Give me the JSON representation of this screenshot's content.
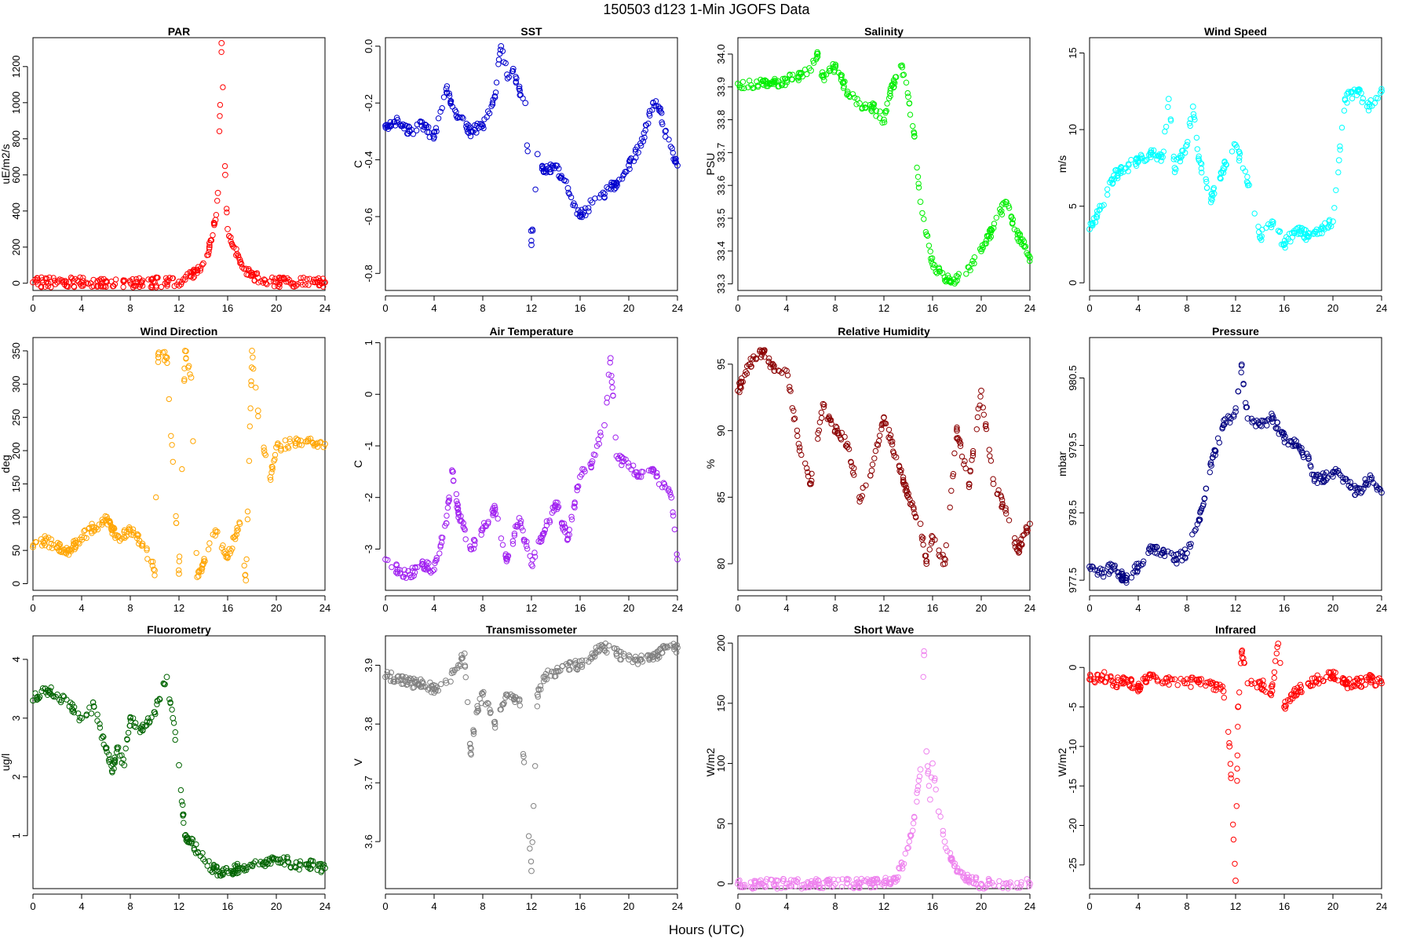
{
  "figure": {
    "title": "150503   d123   1-Min  JGOFS Data",
    "xlabel": "Hours (UTC)"
  },
  "chart_data": [
    {
      "type": "scatter",
      "title": "PAR",
      "xlabel": "Hours (UTC)",
      "ylabel": "uE/m2/s",
      "color": "#ff0000",
      "xlim": [
        0,
        24
      ],
      "ylim": [
        -40,
        1360
      ],
      "xticks": [
        0,
        4,
        8,
        12,
        16,
        20,
        24
      ],
      "yticks": [
        0,
        200,
        400,
        600,
        800,
        1000,
        1200
      ],
      "ytick_labels": [
        "0",
        "200",
        "400",
        "600",
        "800",
        "1000",
        "1200"
      ],
      "x": [
        0,
        2,
        4,
        6,
        8,
        10,
        11,
        12,
        12.5,
        13,
        13.5,
        14,
        14.5,
        15,
        15.2,
        15.5,
        15.8,
        16,
        16.5,
        17,
        17.5,
        18,
        18.5,
        19,
        19.5,
        20,
        22,
        24
      ],
      "y": [
        5,
        5,
        5,
        5,
        5,
        5,
        5,
        8,
        20,
        40,
        75,
        110,
        200,
        350,
        500,
        1330,
        600,
        300,
        200,
        130,
        80,
        45,
        30,
        20,
        10,
        5,
        5,
        5
      ]
    },
    {
      "type": "scatter",
      "title": "SST",
      "xlabel": "Hours (UTC)",
      "ylabel": "C",
      "color": "#0000cd",
      "xlim": [
        0,
        24
      ],
      "ylim": [
        -0.86,
        0.03
      ],
      "xticks": [
        0,
        4,
        8,
        12,
        16,
        20,
        24
      ],
      "yticks": [
        -0.8,
        -0.6,
        -0.4,
        -0.2,
        0.0
      ],
      "ytick_labels": [
        "-0.8",
        "-0.6",
        "-0.4",
        "-0.2",
        "0.0"
      ],
      "x": [
        0,
        1,
        2,
        3,
        4,
        5,
        6,
        7,
        8,
        9,
        9.5,
        10,
        10.5,
        11,
        11.5,
        12,
        12.5,
        13,
        14,
        15,
        16,
        17,
        18,
        19,
        20,
        21,
        22,
        22.5,
        23,
        24
      ],
      "y": [
        -0.28,
        -0.26,
        -0.3,
        -0.28,
        -0.32,
        -0.15,
        -0.25,
        -0.3,
        -0.28,
        -0.18,
        0.0,
        -0.1,
        -0.08,
        -0.15,
        -0.2,
        -0.7,
        -0.38,
        -0.44,
        -0.42,
        -0.5,
        -0.6,
        -0.55,
        -0.52,
        -0.48,
        -0.42,
        -0.35,
        -0.2,
        -0.22,
        -0.3,
        -0.42
      ]
    },
    {
      "type": "scatter",
      "title": "Salinity",
      "xlabel": "Hours (UTC)",
      "ylabel": "PSU",
      "color": "#00ee00",
      "xlim": [
        0,
        24
      ],
      "ylim": [
        33.28,
        34.05
      ],
      "xticks": [
        0,
        4,
        8,
        12,
        16,
        20,
        24
      ],
      "yticks": [
        33.3,
        33.4,
        33.5,
        33.6,
        33.7,
        33.8,
        33.9,
        34.0
      ],
      "ytick_labels": [
        "33.3",
        "33.4",
        "33.5",
        "33.6",
        "33.7",
        "33.8",
        "33.9",
        "34.0"
      ],
      "x": [
        0,
        2,
        4,
        5,
        6,
        6.5,
        7,
        8,
        8.5,
        9,
        10,
        11,
        12,
        12.5,
        13,
        13.5,
        14,
        14.5,
        15,
        15.5,
        16,
        17,
        18,
        19,
        20,
        21,
        22,
        23,
        24
      ],
      "y": [
        33.91,
        33.91,
        33.92,
        33.93,
        33.95,
        34.0,
        33.93,
        33.96,
        33.93,
        33.88,
        33.85,
        33.84,
        33.8,
        33.88,
        33.93,
        33.96,
        33.87,
        33.75,
        33.55,
        33.45,
        33.36,
        33.32,
        33.31,
        33.35,
        33.4,
        33.47,
        33.55,
        33.45,
        33.38
      ]
    },
    {
      "type": "scatter",
      "title": "Wind Speed",
      "xlabel": "Hours (UTC)",
      "ylabel": "m/s",
      "color": "#00ffff",
      "xlim": [
        0,
        24
      ],
      "ylim": [
        -0.5,
        16
      ],
      "xticks": [
        0,
        4,
        8,
        12,
        16,
        20,
        24
      ],
      "yticks": [
        0,
        5,
        10,
        15
      ],
      "ytick_labels": [
        "0",
        "5",
        "10",
        "15"
      ],
      "x": [
        0,
        1,
        2,
        3,
        4,
        5,
        6,
        6.5,
        7,
        8,
        8.5,
        9,
        10,
        11,
        12,
        13,
        14,
        15,
        16,
        17,
        18,
        19,
        20,
        20.5,
        21,
        22,
        23,
        24
      ],
      "y": [
        3.5,
        5,
        7,
        7.5,
        8,
        8.5,
        8.2,
        12,
        7.5,
        9,
        11.5,
        8,
        5.5,
        7.5,
        9,
        6.5,
        3,
        4,
        2.5,
        3.5,
        3,
        3.5,
        4,
        8,
        12,
        12.5,
        11.5,
        12.5
      ]
    },
    {
      "type": "scatter",
      "title": "Wind Direction",
      "xlabel": "Hours (UTC)",
      "ylabel": "deg",
      "color": "#ffa500",
      "xlim": [
        0,
        24
      ],
      "ylim": [
        -10,
        370
      ],
      "xticks": [
        0,
        4,
        8,
        12,
        16,
        20,
        24
      ],
      "yticks": [
        0,
        50,
        100,
        150,
        200,
        250,
        300,
        350
      ],
      "ytick_labels": [
        "0",
        "50",
        "100",
        "150",
        "200",
        "250",
        "300",
        "350"
      ],
      "x": [
        0,
        1,
        2,
        3,
        4,
        5,
        6,
        7,
        8,
        9,
        10,
        10.3,
        11,
        12,
        12.5,
        13,
        13.5,
        14,
        15,
        16,
        17,
        17.5,
        18,
        18.5,
        19,
        19.5,
        20,
        22,
        24
      ],
      "y": [
        55,
        65,
        55,
        50,
        70,
        85,
        95,
        70,
        80,
        60,
        20,
        345,
        340,
        15,
        350,
        310,
        10,
        30,
        80,
        40,
        90,
        5,
        350,
        260,
        200,
        160,
        205,
        215,
        210
      ]
    },
    {
      "type": "scatter",
      "title": "Air Temperature",
      "xlabel": "Hours (UTC)",
      "ylabel": "C",
      "color": "#a020f0",
      "xlim": [
        0,
        24
      ],
      "ylim": [
        -3.8,
        1.1
      ],
      "xticks": [
        0,
        4,
        8,
        12,
        16,
        20,
        24
      ],
      "yticks": [
        -3,
        -2,
        -1,
        0,
        1
      ],
      "ytick_labels": [
        "-3",
        "-2",
        "-1",
        "0",
        "1"
      ],
      "x": [
        0,
        1,
        2,
        3,
        4,
        5,
        5.5,
        6,
        7,
        8,
        9,
        10,
        11,
        12,
        13,
        14,
        15,
        16,
        17,
        18,
        18.5,
        19,
        20,
        21,
        22,
        23,
        23.5,
        24
      ],
      "y": [
        -3.2,
        -3.4,
        -3.5,
        -3.3,
        -3.4,
        -2.5,
        -1.5,
        -2.3,
        -3,
        -2.6,
        -2.2,
        -3.2,
        -2.4,
        -3.3,
        -2.7,
        -2.1,
        -2.8,
        -1.6,
        -1.3,
        -0.6,
        0.7,
        -1.2,
        -1.4,
        -1.6,
        -1.5,
        -1.8,
        -2.0,
        -3.2
      ]
    },
    {
      "type": "scatter",
      "title": "Relative Humidity",
      "xlabel": "Hours (UTC)",
      "ylabel": "%",
      "color": "#8b0000",
      "xlim": [
        0,
        24
      ],
      "ylim": [
        78,
        97
      ],
      "xticks": [
        0,
        4,
        8,
        12,
        16,
        20,
        24
      ],
      "yticks": [
        80,
        85,
        90,
        95
      ],
      "ytick_labels": [
        "80",
        "85",
        "90",
        "95"
      ],
      "x": [
        0,
        1,
        2,
        3,
        4,
        5,
        6,
        7,
        8,
        9,
        10,
        11,
        12,
        13,
        14,
        15,
        15.5,
        16,
        17,
        18,
        19,
        20,
        21,
        22,
        23,
        24
      ],
      "y": [
        93,
        95,
        96,
        94.5,
        94.5,
        89,
        86,
        92,
        90,
        89,
        85,
        87,
        91,
        88,
        85,
        83,
        80,
        82,
        80,
        90,
        86,
        93,
        86,
        84,
        81,
        83
      ]
    },
    {
      "type": "scatter",
      "title": "Pressure",
      "xlabel": "Hours (UTC)",
      "ylabel": "mbar",
      "color": "#000080",
      "xlim": [
        0,
        24
      ],
      "ylim": [
        977.35,
        981.1
      ],
      "xticks": [
        0,
        4,
        8,
        12,
        16,
        20,
        24
      ],
      "yticks": [
        977.5,
        978.5,
        979.5,
        980.5
      ],
      "ytick_labels": [
        "977.5",
        "978.5",
        "979.5",
        "980.5"
      ],
      "x": [
        0,
        1,
        2,
        3,
        4,
        5,
        6,
        7,
        8,
        9,
        10,
        11,
        12,
        12.5,
        13,
        14,
        15,
        16,
        17,
        18,
        18.5,
        19,
        20,
        21,
        22,
        23,
        24
      ],
      "y": [
        977.7,
        977.6,
        977.7,
        977.5,
        977.7,
        978.0,
        977.9,
        977.8,
        977.9,
        978.4,
        979.2,
        979.8,
        980.0,
        980.7,
        979.9,
        979.8,
        979.9,
        979.6,
        979.5,
        979.3,
        979.0,
        979.0,
        979.1,
        979.0,
        978.8,
        979.0,
        978.8
      ]
    },
    {
      "type": "scatter",
      "title": "Fluorometry",
      "xlabel": "Hours (UTC)",
      "ylabel": "ug/l",
      "color": "#006400",
      "xlim": [
        0,
        24
      ],
      "ylim": [
        0.1,
        4.4
      ],
      "xticks": [
        0,
        4,
        8,
        12,
        16,
        20,
        24
      ],
      "yticks": [
        1,
        2,
        3,
        4
      ],
      "ytick_labels": [
        "1",
        "2",
        "3",
        "4"
      ],
      "x": [
        0,
        1,
        2,
        3,
        4,
        5,
        6,
        6.5,
        7,
        7.5,
        8,
        9,
        10,
        11,
        11.5,
        12,
        12.5,
        13,
        14,
        15,
        16,
        17,
        18,
        19,
        20,
        21,
        22,
        23,
        24
      ],
      "y": [
        3.3,
        3.5,
        3.4,
        3.2,
        3.0,
        3.2,
        2.5,
        2.1,
        2.5,
        2.2,
        3.0,
        2.8,
        3.1,
        3.7,
        3.0,
        2.2,
        1.0,
        0.9,
        0.6,
        0.4,
        0.4,
        0.45,
        0.5,
        0.55,
        0.6,
        0.55,
        0.5,
        0.5,
        0.45
      ]
    },
    {
      "type": "scatter",
      "title": "Transmissometer",
      "xlabel": "Hours (UTC)",
      "ylabel": "V",
      "color": "#808080",
      "xlim": [
        0,
        24
      ],
      "ylim": [
        3.52,
        3.95
      ],
      "xticks": [
        0,
        4,
        8,
        12,
        16,
        20,
        24
      ],
      "yticks": [
        3.6,
        3.7,
        3.8,
        3.9
      ],
      "ytick_labels": [
        "3.6",
        "3.7",
        "3.8",
        "3.9"
      ],
      "x": [
        0,
        1,
        2,
        3,
        4,
        5,
        6,
        6.5,
        7,
        7.5,
        8,
        9,
        10,
        11,
        12,
        12.5,
        13,
        14,
        15,
        16,
        17,
        18,
        19,
        20,
        21,
        22,
        23,
        24
      ],
      "y": [
        3.88,
        3.88,
        3.87,
        3.87,
        3.86,
        3.87,
        3.9,
        3.92,
        3.75,
        3.82,
        3.85,
        3.8,
        3.85,
        3.84,
        3.55,
        3.85,
        3.88,
        3.89,
        3.9,
        3.9,
        3.92,
        3.93,
        3.92,
        3.91,
        3.91,
        3.91,
        3.93,
        3.93
      ]
    },
    {
      "type": "scatter",
      "title": "Short Wave",
      "xlabel": "Hours (UTC)",
      "ylabel": "W/m2",
      "color": "#ee82ee",
      "xlim": [
        0,
        24
      ],
      "ylim": [
        -4,
        206
      ],
      "xticks": [
        0,
        4,
        8,
        12,
        16,
        20,
        24
      ],
      "yticks": [
        0,
        50,
        100,
        150,
        200
      ],
      "ytick_labels": [
        "0",
        "50",
        "100",
        "150",
        "200"
      ],
      "x": [
        0,
        2,
        4,
        6,
        8,
        10,
        11,
        12,
        13,
        13.5,
        14,
        14.5,
        15,
        15.3,
        15.5,
        15.8,
        16,
        16.5,
        17,
        17.5,
        18,
        19,
        20,
        22,
        24
      ],
      "y": [
        0,
        0,
        0,
        0,
        0,
        0,
        0,
        1,
        5,
        15,
        30,
        55,
        95,
        190,
        110,
        70,
        100,
        60,
        35,
        20,
        10,
        3,
        0,
        0,
        0
      ]
    },
    {
      "type": "scatter",
      "title": "Infrared",
      "xlabel": "Hours (UTC)",
      "ylabel": "W/m2",
      "color": "#ff0000",
      "xlim": [
        0,
        24
      ],
      "ylim": [
        -28,
        4
      ],
      "xticks": [
        0,
        4,
        8,
        12,
        16,
        20,
        24
      ],
      "yticks": [
        -25,
        -20,
        -15,
        -10,
        -5,
        0
      ],
      "ytick_labels": [
        "-25",
        "-20",
        "-15",
        "-10",
        "-5",
        "0"
      ],
      "x": [
        0,
        1,
        2,
        3,
        4,
        5,
        6,
        7,
        8,
        9,
        10,
        11,
        11.5,
        12,
        12.2,
        12.5,
        13,
        14,
        15,
        15.5,
        16,
        16.5,
        17,
        18,
        19,
        20,
        21,
        22,
        23,
        24
      ],
      "y": [
        -1.5,
        -1,
        -2,
        -1.5,
        -2.5,
        -1,
        -2,
        -1.5,
        -2,
        -1.5,
        -2,
        -3,
        -10,
        -27,
        -5,
        2,
        -2,
        -2,
        -3,
        3,
        -5,
        -4,
        -3,
        -2,
        -1.5,
        -1,
        -2,
        -2,
        -1.5,
        -2
      ]
    }
  ]
}
